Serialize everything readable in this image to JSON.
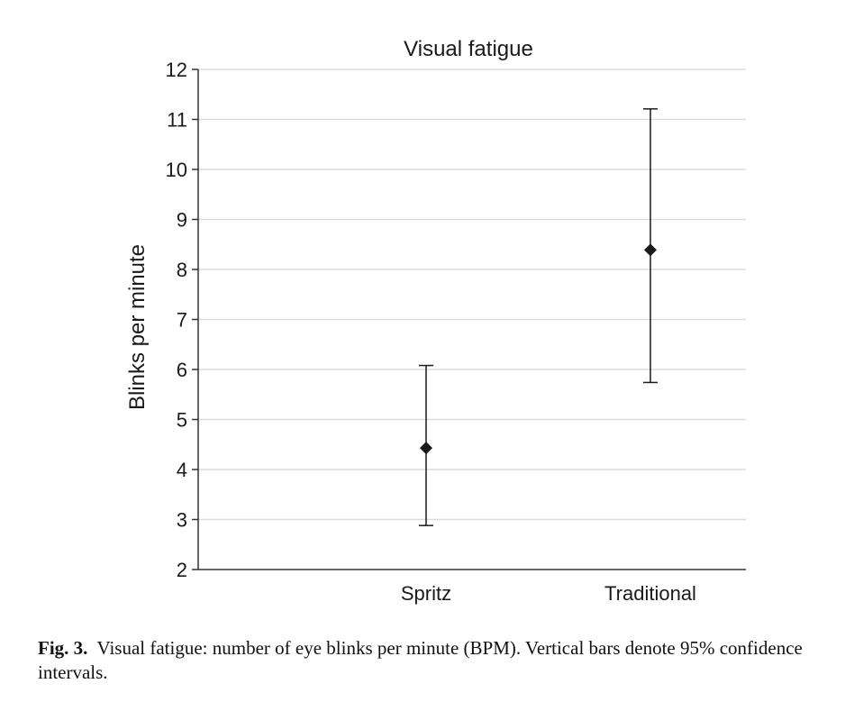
{
  "chart_data": {
    "type": "scatter",
    "title": "Visual fatigue",
    "xlabel": "",
    "ylabel": "Blinks per minute",
    "categories": [
      "Spritz",
      "Traditional"
    ],
    "series": [
      {
        "values": [
          4.43,
          8.39
        ],
        "ci_lower": [
          2.88,
          5.74
        ],
        "ci_upper": [
          6.08,
          11.21
        ]
      }
    ],
    "ylim": [
      2,
      12
    ],
    "yticks": [
      "2",
      "3",
      "4",
      "5",
      "6",
      "7",
      "8",
      "9",
      "10",
      "11",
      "12"
    ],
    "grid": true,
    "marker": "diamond",
    "error_bars": "95% confidence intervals"
  },
  "caption": {
    "label": "Fig. 3.",
    "text": "Visual fatigue: number of eye blinks per minute (BPM). Vertical bars denote 95% confidence intervals."
  },
  "colors": {
    "marker": "#1a1a1a",
    "gridline": "#dcdcdc",
    "axis": "#333333"
  }
}
